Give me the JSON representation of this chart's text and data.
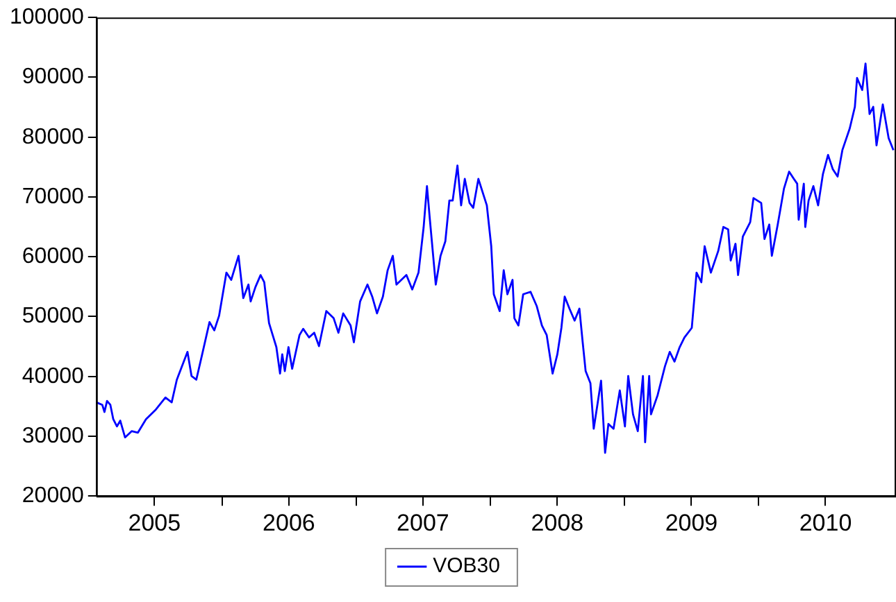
{
  "chart_data": {
    "type": "line",
    "xlim": [
      "2005-01-24",
      "2011-01-10"
    ],
    "ylim": [
      20000,
      100000
    ],
    "yticks": [
      20000,
      30000,
      40000,
      50000,
      60000,
      70000,
      80000,
      90000,
      100000
    ],
    "xticks": [
      {
        "value": "2005-07-01",
        "label": "2005"
      },
      {
        "value": "2006-01-01",
        "label": null
      },
      {
        "value": "2006-07-02",
        "label": "2006"
      },
      {
        "value": "2007-01-01",
        "label": null
      },
      {
        "value": "2007-07-02",
        "label": "2007"
      },
      {
        "value": "2008-01-01",
        "label": null
      },
      {
        "value": "2008-07-02",
        "label": "2008"
      },
      {
        "value": "2009-01-01",
        "label": null
      },
      {
        "value": "2009-07-02",
        "label": "2009"
      },
      {
        "value": "2010-01-01",
        "label": null
      },
      {
        "value": "2010-07-02",
        "label": "2010"
      }
    ],
    "grid": false,
    "legend": "bottom",
    "marker": "none",
    "line_style": "solid",
    "x": [
      "2005-01-24",
      "2005-02-09",
      "2005-02-15",
      "2005-02-22",
      "2005-03-03",
      "2005-03-11",
      "2005-03-21",
      "2005-03-30",
      "2005-04-12",
      "2005-04-30",
      "2005-05-17",
      "2005-06-08",
      "2005-07-05",
      "2005-07-31",
      "2005-08-17",
      "2005-08-31",
      "2005-09-13",
      "2005-09-29",
      "2005-10-10",
      "2005-10-23",
      "2005-11-08",
      "2005-11-28",
      "2005-12-11",
      "2005-12-24",
      "2006-01-13",
      "2006-01-26",
      "2006-02-15",
      "2006-02-28",
      "2006-03-14",
      "2006-03-20",
      "2006-04-02",
      "2006-04-16",
      "2006-04-26",
      "2006-05-09",
      "2006-05-19",
      "2006-05-29",
      "2006-06-08",
      "2006-06-14",
      "2006-06-21",
      "2006-07-01",
      "2006-07-11",
      "2006-07-31",
      "2006-08-10",
      "2006-08-26",
      "2006-09-09",
      "2006-09-22",
      "2006-10-12",
      "2006-11-01",
      "2006-11-14",
      "2006-11-27",
      "2006-12-17",
      "2006-12-26",
      "2007-01-12",
      "2007-02-01",
      "2007-02-14",
      "2007-02-27",
      "2007-03-15",
      "2007-03-28",
      "2007-04-11",
      "2007-04-21",
      "2007-05-18",
      "2007-06-03",
      "2007-06-20",
      "2007-07-04",
      "2007-07-13",
      "2007-07-21",
      "2007-08-06",
      "2007-08-19",
      "2007-09-01",
      "2007-09-12",
      "2007-09-21",
      "2007-10-04",
      "2007-10-14",
      "2007-10-24",
      "2007-11-06",
      "2007-11-16",
      "2007-11-30",
      "2007-12-23",
      "2008-01-04",
      "2008-01-11",
      "2008-01-27",
      "2008-02-07",
      "2008-02-17",
      "2008-03-02",
      "2008-03-07",
      "2008-03-18",
      "2008-03-31",
      "2008-04-20",
      "2008-05-07",
      "2008-05-21",
      "2008-06-03",
      "2008-06-19",
      "2008-07-02",
      "2008-07-13",
      "2008-07-22",
      "2008-08-04",
      "2008-08-18",
      "2008-08-31",
      "2008-09-09",
      "2008-09-17",
      "2008-09-30",
      "2008-10-09",
      "2008-10-19",
      "2008-10-29",
      "2008-11-09",
      "2008-11-18",
      "2008-12-02",
      "2008-12-19",
      "2009-01-02",
      "2009-01-11",
      "2009-01-24",
      "2009-02-06",
      "2009-02-20",
      "2009-02-26",
      "2009-03-09",
      "2009-03-14",
      "2009-04-01",
      "2009-04-21",
      "2009-05-04",
      "2009-05-17",
      "2009-05-31",
      "2009-06-13",
      "2009-07-03",
      "2009-07-16",
      "2009-07-29",
      "2009-08-07",
      "2009-08-24",
      "2009-09-13",
      "2009-09-27",
      "2009-10-10",
      "2009-10-17",
      "2009-10-30",
      "2009-11-06",
      "2009-11-19",
      "2009-12-09",
      "2009-12-18",
      "2010-01-08",
      "2010-01-17",
      "2010-01-30",
      "2010-02-06",
      "2010-02-22",
      "2010-03-11",
      "2010-03-25",
      "2010-04-07",
      "2010-04-16",
      "2010-04-20",
      "2010-05-04",
      "2010-05-08",
      "2010-05-17",
      "2010-05-30",
      "2010-06-12",
      "2010-06-25",
      "2010-07-09",
      "2010-07-22",
      "2010-08-04",
      "2010-08-17",
      "2010-09-06",
      "2010-09-20",
      "2010-09-26",
      "2010-10-10",
      "2010-10-19",
      "2010-10-30",
      "2010-11-09",
      "2010-11-18",
      "2010-12-05",
      "2010-12-21",
      "2011-01-03"
    ],
    "series": [
      {
        "name": "VOB30",
        "color": "#0000ff",
        "values": [
          35660,
          35250,
          34050,
          35900,
          35250,
          32840,
          31640,
          32600,
          29800,
          30840,
          30600,
          32840,
          34460,
          36460,
          35660,
          39450,
          41520,
          44100,
          40070,
          39450,
          43690,
          49080,
          47700,
          50120,
          57350,
          56140,
          60160,
          53090,
          55350,
          52530,
          54940,
          56940,
          55740,
          48920,
          46910,
          44890,
          40480,
          43690,
          40890,
          44890,
          41280,
          46910,
          47950,
          46510,
          47300,
          45060,
          50920,
          49720,
          47300,
          50530,
          48510,
          45700,
          52530,
          55350,
          53330,
          50530,
          53330,
          57750,
          60160,
          55350,
          56940,
          54530,
          57350,
          64980,
          71810,
          66190,
          55350,
          60160,
          62570,
          69400,
          69400,
          75250,
          68590,
          73010,
          68990,
          68190,
          73010,
          68590,
          61760,
          53730,
          50920,
          57750,
          53730,
          56140,
          49720,
          48510,
          53730,
          54140,
          51730,
          48510,
          46910,
          40480,
          43690,
          48110,
          53330,
          51330,
          49320,
          51330,
          45700,
          40890,
          38870,
          31250,
          35250,
          39280,
          27230,
          32050,
          31250,
          37660,
          31640,
          40070,
          33660,
          30840,
          40070,
          28990,
          40070,
          33660,
          36870,
          41690,
          44100,
          42480,
          44890,
          46510,
          48110,
          57350,
          55740,
          61760,
          57350,
          60960,
          64980,
          64580,
          59360,
          62170,
          56940,
          63370,
          65780,
          69800,
          68990,
          62970,
          65380,
          60160,
          65380,
          71400,
          74220,
          73010,
          72210,
          66190,
          72210,
          64980,
          69400,
          71810,
          68590,
          73810,
          77030,
          74620,
          73410,
          77830,
          81440,
          85060,
          89880,
          87880,
          92290,
          83860,
          85060,
          78630,
          85460,
          79830,
          77830
        ]
      }
    ]
  }
}
